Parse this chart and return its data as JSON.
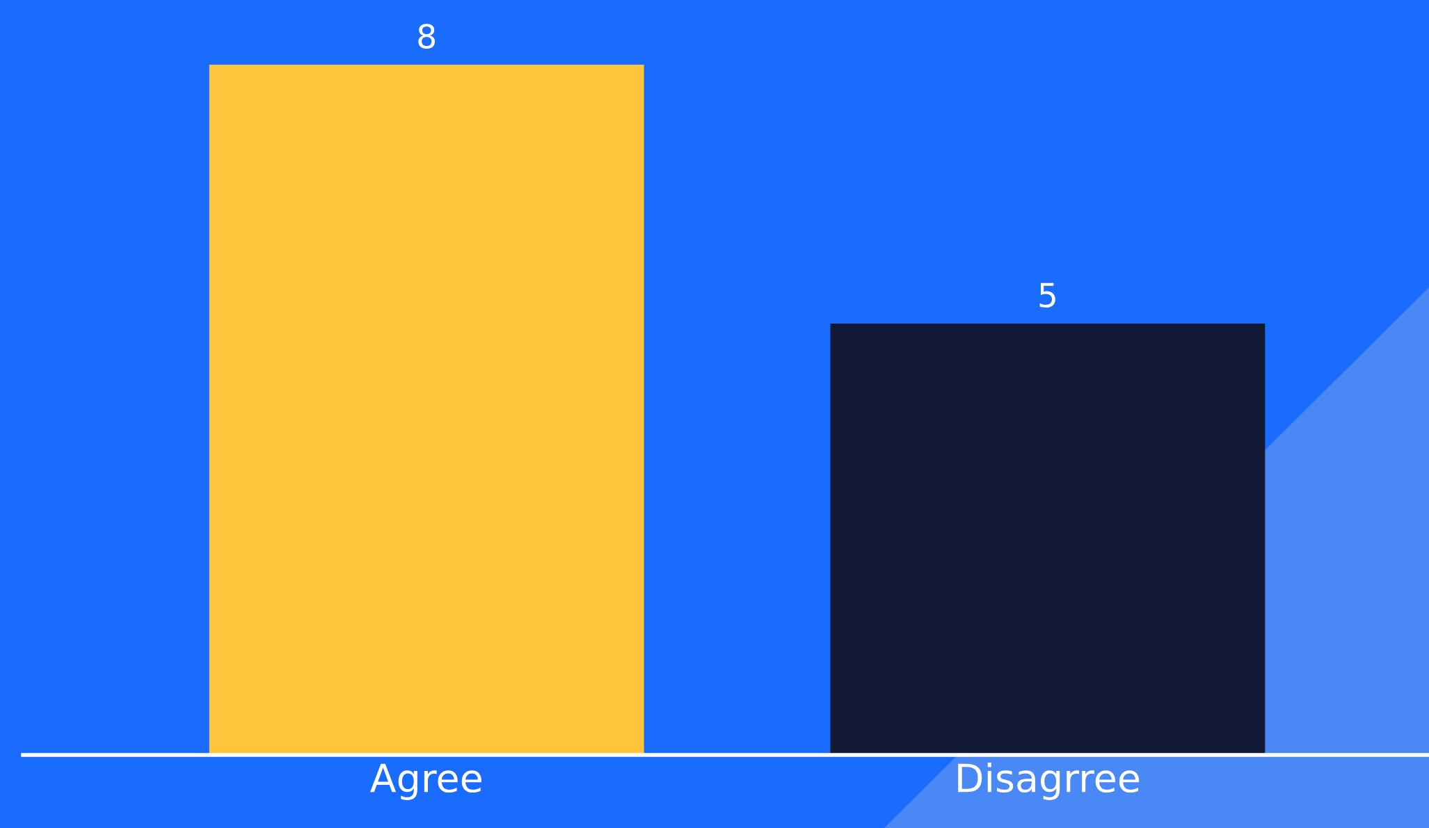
{
  "chart_data": {
    "type": "bar",
    "categories": [
      "Agree",
      "Disagrree"
    ],
    "values": [
      8,
      5
    ],
    "colors": [
      "#fdc43c",
      "#121a35"
    ],
    "ylim": [
      0,
      8.75
    ],
    "tick_labels": "x",
    "data_labels": true,
    "grid": false,
    "legend": false
  }
}
